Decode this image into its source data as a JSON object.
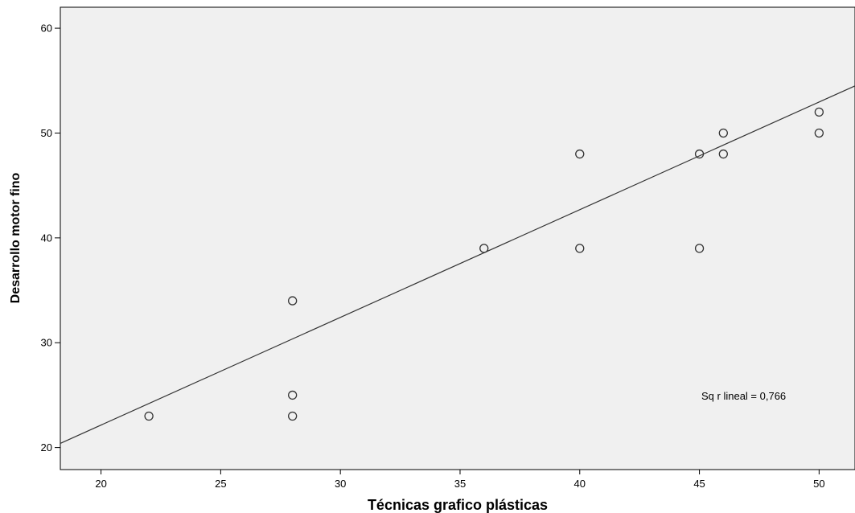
{
  "chart_data": {
    "type": "scatter",
    "title": "",
    "xlabel": "Técnicas grafico plásticas",
    "ylabel": "Desarrollo motor fino",
    "xlim": [
      18.3,
      51.5
    ],
    "ylim": [
      17.9,
      62.0
    ],
    "x_ticks": [
      20,
      25,
      30,
      35,
      40,
      45,
      50
    ],
    "y_ticks": [
      20,
      30,
      40,
      50,
      60
    ],
    "grid": false,
    "points": [
      {
        "x": 22,
        "y": 23
      },
      {
        "x": 28,
        "y": 34
      },
      {
        "x": 28,
        "y": 25
      },
      {
        "x": 28,
        "y": 23
      },
      {
        "x": 36,
        "y": 39
      },
      {
        "x": 40,
        "y": 48
      },
      {
        "x": 40,
        "y": 39
      },
      {
        "x": 45,
        "y": 48
      },
      {
        "x": 45,
        "y": 39
      },
      {
        "x": 46,
        "y": 50
      },
      {
        "x": 46,
        "y": 48
      },
      {
        "x": 50,
        "y": 52
      },
      {
        "x": 50,
        "y": 50
      }
    ],
    "fit_line": {
      "x": [
        18.3,
        51.5
      ],
      "y": [
        20.4,
        54.5
      ]
    },
    "annotation": "Sq r lineal = 0,766",
    "colors": {
      "plot_background": "#f0f0f0",
      "marker_stroke": "#333333",
      "line": "#333333",
      "axis": "#000000"
    }
  }
}
